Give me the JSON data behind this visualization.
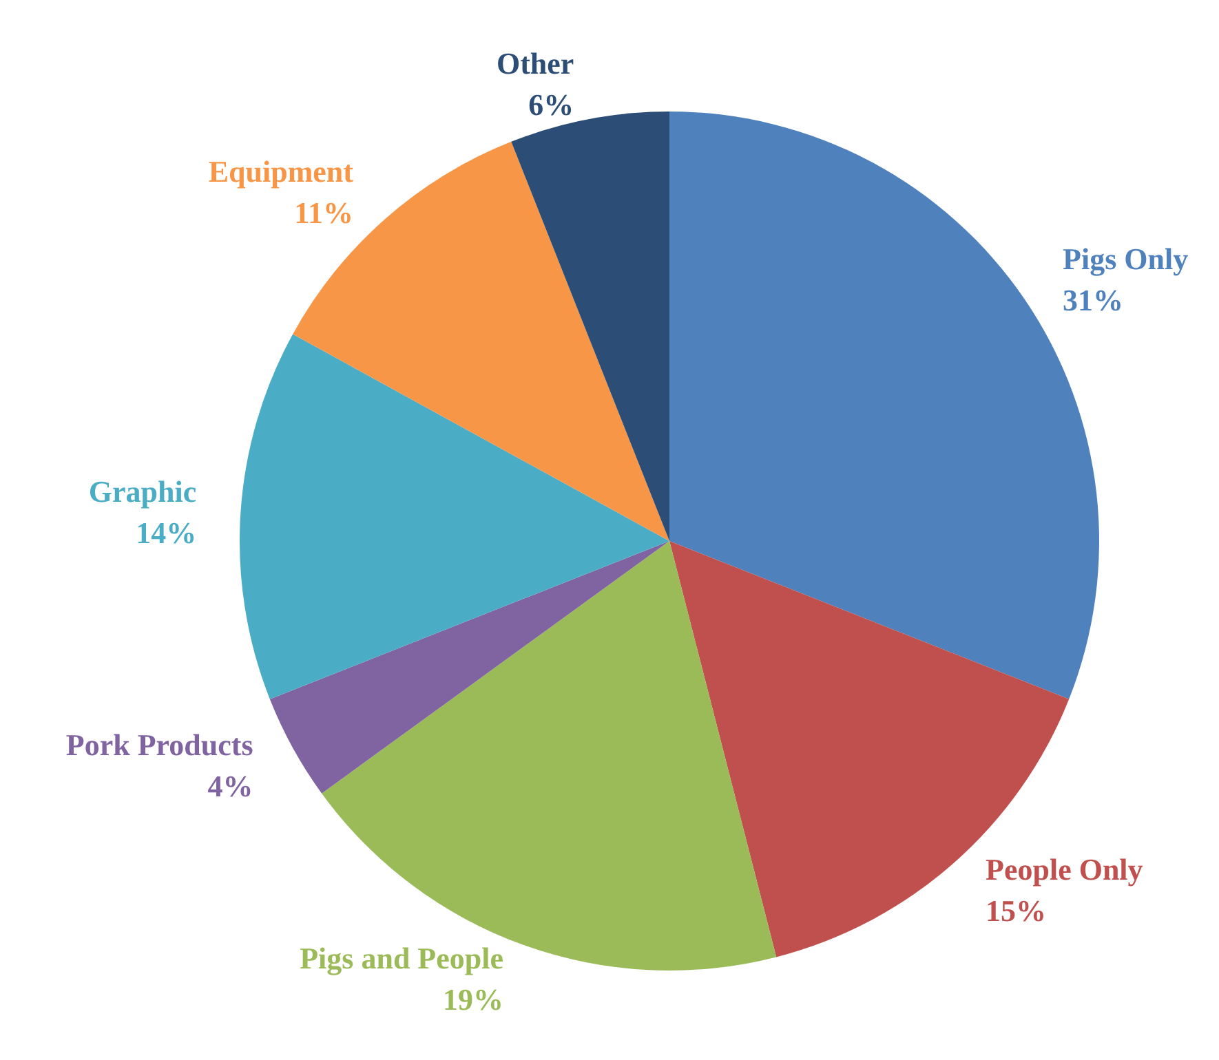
{
  "chart_data": {
    "type": "pie",
    "categories": [
      "Pigs Only",
      "People Only",
      "Pigs and People",
      "Pork Products",
      "Graphic",
      "Equipment",
      "Other"
    ],
    "values": [
      31,
      15,
      19,
      4,
      14,
      11,
      6
    ],
    "value_labels": [
      "31%",
      "15%",
      "19%",
      "4%",
      "14%",
      "11%",
      "6%"
    ],
    "colors": [
      "#4f81bd",
      "#c0504d",
      "#9bbb59",
      "#8064a2",
      "#4bacc6",
      "#f79646",
      "#2c4d75"
    ],
    "legend": false
  }
}
